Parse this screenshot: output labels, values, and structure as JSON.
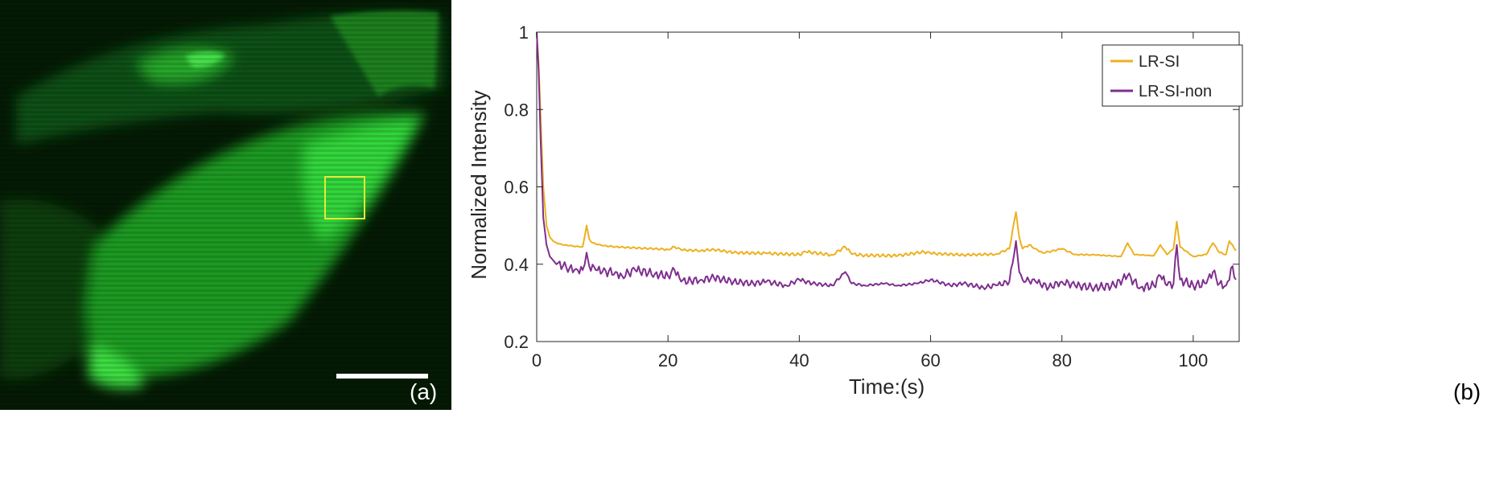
{
  "panel_a": {
    "label": "(a)",
    "colors": {
      "background": "#041a04",
      "cell": "#27c62b",
      "roi_box": "#e8e83a",
      "scale_bar": "#ffffff"
    }
  },
  "panel_b": {
    "label": "(b)"
  },
  "chart_data": {
    "type": "line",
    "title": "",
    "xlabel": "Time:(s)",
    "ylabel": "Normalized Intensity",
    "xlim": [
      0,
      107
    ],
    "ylim": [
      0.2,
      1
    ],
    "xticks": [
      0,
      20,
      40,
      60,
      80,
      100
    ],
    "yticks": [
      0.2,
      0.4,
      0.6,
      0.8,
      1
    ],
    "ytick_labels": [
      "0.2",
      "0.4",
      "0.6",
      "0.8",
      "1"
    ],
    "grid": false,
    "legend_position": "top-right",
    "series": [
      {
        "name": "LR-SI",
        "color": "#EDB120",
        "x": [
          0,
          0.3,
          0.6,
          1,
          1.5,
          2,
          2.5,
          3,
          4,
          5,
          6,
          7,
          7.6,
          8,
          8.5,
          10,
          12,
          15,
          18,
          20,
          21,
          22,
          25,
          27,
          30,
          35,
          40,
          41,
          45,
          47,
          48,
          50,
          55,
          59,
          60,
          65,
          70,
          72,
          73,
          73.5,
          74,
          75,
          76,
          77,
          78,
          80,
          82,
          85,
          89,
          90,
          91,
          94,
          95,
          96,
          97,
          97.5,
          98,
          100,
          102,
          103,
          104,
          105,
          105.5,
          106.5
        ],
        "y": [
          1.0,
          0.92,
          0.78,
          0.6,
          0.5,
          0.47,
          0.46,
          0.455,
          0.45,
          0.448,
          0.446,
          0.445,
          0.5,
          0.465,
          0.455,
          0.448,
          0.445,
          0.442,
          0.44,
          0.438,
          0.445,
          0.437,
          0.435,
          0.438,
          0.43,
          0.428,
          0.425,
          0.432,
          0.424,
          0.445,
          0.426,
          0.423,
          0.422,
          0.432,
          0.428,
          0.424,
          0.426,
          0.44,
          0.535,
          0.47,
          0.44,
          0.45,
          0.44,
          0.43,
          0.432,
          0.44,
          0.425,
          0.424,
          0.42,
          0.455,
          0.425,
          0.422,
          0.45,
          0.425,
          0.44,
          0.51,
          0.445,
          0.42,
          0.425,
          0.455,
          0.43,
          0.425,
          0.46,
          0.435
        ]
      },
      {
        "name": "LR-SI-non",
        "color": "#7E2F8E",
        "x": [
          0,
          0.3,
          0.6,
          1,
          1.5,
          2,
          2.5,
          3,
          4,
          5,
          6,
          7,
          7.6,
          8,
          9,
          10,
          12,
          13,
          15,
          18,
          20,
          21,
          22,
          25,
          27,
          30,
          33,
          35,
          38,
          40,
          42,
          45,
          47,
          48,
          50,
          53,
          55,
          58,
          60,
          63,
          65,
          68,
          70,
          72,
          73,
          73.5,
          74,
          76,
          78,
          80,
          82,
          85,
          88,
          90,
          92,
          94,
          95,
          96,
          97,
          97.5,
          98,
          100,
          102,
          103,
          104,
          105,
          106,
          106.5
        ],
        "y": [
          1.0,
          0.9,
          0.72,
          0.52,
          0.45,
          0.42,
          0.41,
          0.4,
          0.395,
          0.39,
          0.388,
          0.385,
          0.43,
          0.395,
          0.385,
          0.38,
          0.38,
          0.37,
          0.385,
          0.375,
          0.37,
          0.385,
          0.355,
          0.36,
          0.365,
          0.355,
          0.35,
          0.355,
          0.345,
          0.36,
          0.35,
          0.345,
          0.38,
          0.35,
          0.345,
          0.35,
          0.345,
          0.35,
          0.36,
          0.345,
          0.35,
          0.34,
          0.345,
          0.355,
          0.46,
          0.38,
          0.36,
          0.355,
          0.34,
          0.355,
          0.345,
          0.34,
          0.345,
          0.37,
          0.34,
          0.345,
          0.37,
          0.345,
          0.35,
          0.45,
          0.36,
          0.345,
          0.35,
          0.38,
          0.35,
          0.345,
          0.395,
          0.36
        ]
      }
    ]
  }
}
